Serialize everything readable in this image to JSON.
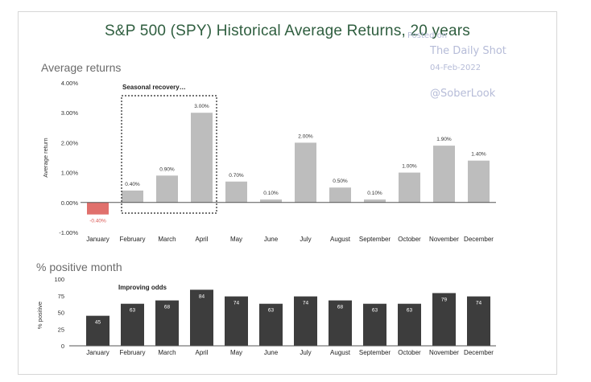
{
  "title": "S&P 500 (SPY) Historical Average Returns, 20 years",
  "watermark": {
    "posted": "Posted on",
    "source": "The Daily Shot",
    "date": "04-Feb-2022",
    "handle": "@SoberLook"
  },
  "colors": {
    "positive_bar": "#bdbdbd",
    "negative_bar": "#e0706c",
    "count_bar": "#3d3d3d",
    "title": "#2f5e3f"
  },
  "chart_data": [
    {
      "type": "bar",
      "section_title": "Average returns",
      "annotation": "Seasonal recovery…",
      "ylabel": "Average return",
      "ylim": [
        -1,
        4
      ],
      "yticks": [
        -1,
        0,
        1,
        2,
        3,
        4
      ],
      "ytick_labels": [
        "-1.00%",
        "0.00%",
        "1.00%",
        "2.00%",
        "3.00%",
        "4.00%"
      ],
      "categories": [
        "January",
        "February",
        "March",
        "April",
        "May",
        "June",
        "July",
        "August",
        "September",
        "October",
        "November",
        "December"
      ],
      "values": [
        -0.4,
        0.4,
        0.9,
        3.0,
        0.7,
        0.1,
        2.0,
        0.5,
        0.1,
        1.0,
        1.9,
        1.4
      ],
      "value_labels": [
        "-0.40%",
        "0.40%",
        "0.90%",
        "3.00%",
        "0.70%",
        "0.10%",
        "2.00%",
        "0.50%",
        "0.10%",
        "1.00%",
        "1.90%",
        "1.40%"
      ],
      "highlight_range": [
        "February",
        "April"
      ],
      "grid": false
    },
    {
      "type": "bar",
      "section_title": "% positive month",
      "annotation": "Improving odds",
      "ylabel": "% positive",
      "ylim": [
        0,
        100
      ],
      "yticks": [
        0,
        25,
        50,
        75,
        100
      ],
      "ytick_labels": [
        "0",
        "25",
        "50",
        "75",
        "100"
      ],
      "categories": [
        "January",
        "February",
        "March",
        "April",
        "May",
        "June",
        "July",
        "August",
        "September",
        "October",
        "November",
        "December"
      ],
      "values": [
        45,
        63,
        68,
        84,
        74,
        63,
        74,
        68,
        63,
        63,
        79,
        74
      ],
      "value_labels": [
        "45",
        "63",
        "68",
        "84",
        "74",
        "63",
        "74",
        "68",
        "63",
        "63",
        "79",
        "74"
      ],
      "grid": false
    }
  ]
}
